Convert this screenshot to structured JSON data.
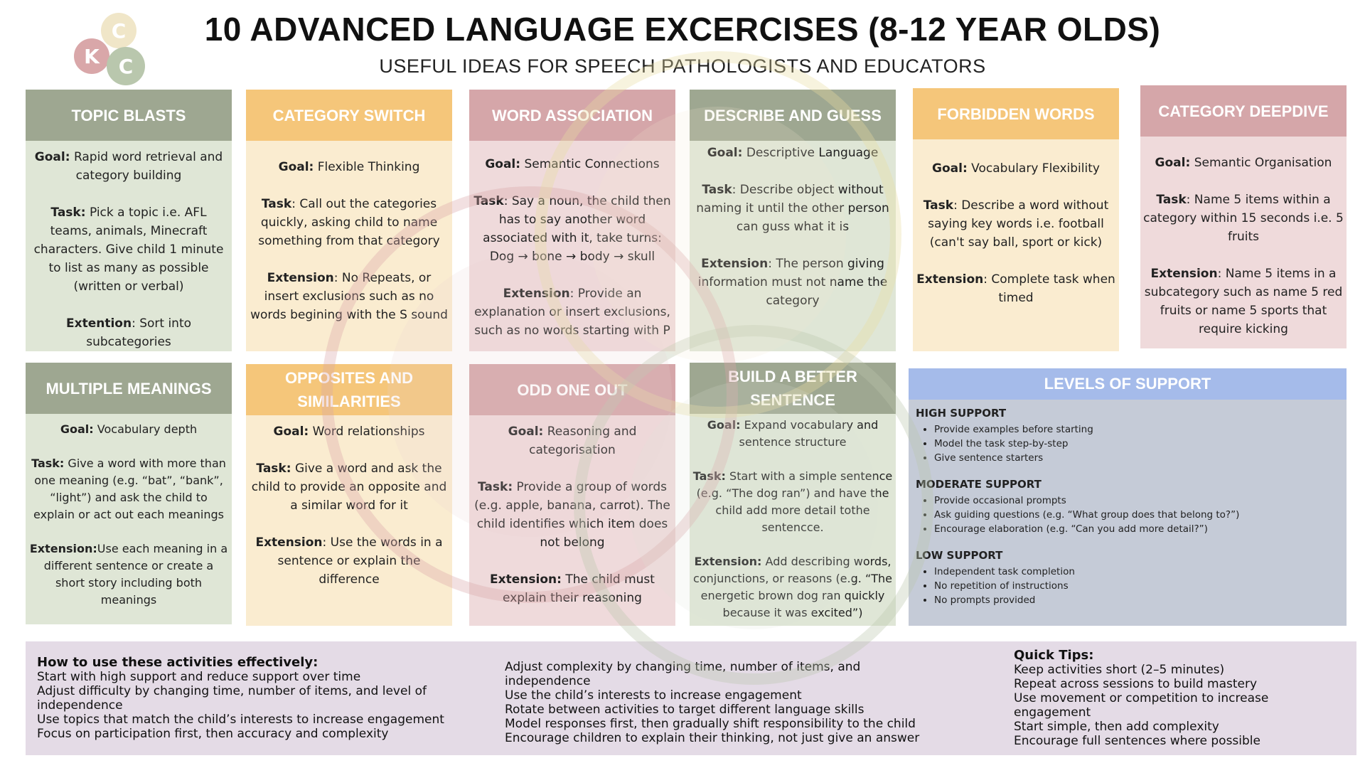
{
  "logo": {
    "letters": [
      "C",
      "K",
      "C"
    ],
    "colors": [
      "#f0e6c8",
      "#d9a7a9",
      "#b9c7ad"
    ]
  },
  "header": {
    "title": "10 ADVANCED LANGUAGE EXCERCISES (8-12 YEAR OLDS)",
    "subtitle": "USEFUL IDEAS FOR SPEECH PATHOLOGISTS AND EDUCATORS"
  },
  "cards": [
    {
      "title": "TOPIC BLASTS",
      "goal_label": "Goal:",
      "goal": "Rapid word retrieval and category building",
      "task_label": "Task:",
      "task": "Pick a topic i.e. AFL teams, animals, Minecraft characters. Give child 1 minute to list as many as possible (written or verbal)",
      "ext_label": "Extention",
      "ext": ": Sort into subcategories"
    },
    {
      "title": "CATEGORY SWITCH",
      "goal_label": "Goal:",
      "goal": "Flexible Thinking",
      "task_label": "Task",
      "task": ": Call out the categories quickly, asking child to name something from that category",
      "ext_label": "Extension",
      "ext": ": No Repeats, or insert exclusions such as no words begining with the S sound"
    },
    {
      "title": "WORD ASSOCIATION",
      "goal_label": "Goal:",
      "goal": "Semantic Connections",
      "task_label": "Task",
      "task": ": Say a noun, the child then has to say another word associated with it, take turns: Dog → bone → body → skull",
      "ext_label": "Extension",
      "ext": ": Provide an explanation or insert exclusions, such as no words starting with P"
    },
    {
      "title": "DESCRIBE AND GUESS",
      "goal_label": "Goal:",
      "goal": "Descriptive Language",
      "task_label": "Task",
      "task": ": Describe object without naming it until the other person can guss what it is",
      "ext_label": "Extension",
      "ext": ": The person giving information  must not name the category"
    },
    {
      "title": "FORBIDDEN WORDS",
      "goal_label": "Goal:",
      "goal": "Vocabulary Flexibility",
      "task_label": "Task",
      "task": ": Describe a word without saying key words i.e. football (can't say ball, sport or kick)",
      "ext_label": "Extension",
      "ext": ": Complete task when timed"
    },
    {
      "title": "CATEGORY DEEPDIVE",
      "goal_label": "Goal:",
      "goal": "Semantic Organisation",
      "task_label": "Task",
      "task": ": Name 5 items within a category within 15 seconds i.e. 5 fruits",
      "ext_label": "Extension",
      "ext": ": Name 5 items in a subcategory such as name 5 red fruits or name 5 sports that require kicking"
    },
    {
      "title": "MULTIPLE MEANINGS",
      "goal_label": "Goal:",
      "goal": " Vocabulary depth",
      "task_label": "Task:",
      "task": "Give a word with more than one meaning (e.g. “bat”, “bank”, “light”) and ask the child to explain or act out each meanings",
      "ext_label": "Extension:",
      "ext": "Use each meaning in a different sentence or create a short story including both meanings"
    },
    {
      "title": "OPPOSITES AND SIMILARITIES",
      "goal_label": "Goal:",
      "goal": "Word relationships",
      "task_label": "Task:",
      "task": "Give a word and ask the child to provide an opposite and a similar word for it",
      "ext_label": "Extension",
      "ext": ": Use the words in a sentence or explain the difference"
    },
    {
      "title": "ODD ONE OUT",
      "goal_label": "Goal:",
      "goal": "Reasoning and categorisation",
      "task_label": "Task:",
      "task": "Provide a group of words (e.g. apple, banana, carrot). The child identifies which item does not belong",
      "ext_label": "Extension:",
      "ext": "The child must explain their reasoning"
    },
    {
      "title": "BUILD A BETTER SENTENCE",
      "goal_label": "Goal:",
      "goal": "Expand vocabulary and sentence structure",
      "task_label": "Task:",
      "task": "Start with a simple sentence (e.g. “The dog ran”) and have the child add more detail tothe sentencce.",
      "ext_label": "Extension:",
      "ext": "Add describing words, conjunctions, or reasons (e.g. “The energetic brown dog ran quickly because it was excited”)"
    }
  ],
  "levels": {
    "title": "LEVELS OF SUPPORT",
    "groups": [
      {
        "heading": "HIGH SUPPORT",
        "items": [
          "Provide examples before starting",
          "Model the task step-by-step",
          "Give sentence starters"
        ]
      },
      {
        "heading": "MODERATE SUPPORT",
        "items": [
          "Provide occasional prompts",
          "Ask guiding questions (e.g. “What group does that belong to?”)",
          "Encourage elaboration (e.g. “Can you add more detail?”)"
        ]
      },
      {
        "heading": "LOW SUPPORT",
        "items": [
          "Independent task completion",
          "No repetition of instructions",
          "No prompts provided"
        ]
      }
    ]
  },
  "bottom": {
    "col1": {
      "heading": "How to use these activities effectively:",
      "lines": [
        "Start with high support and reduce support over time",
        "Adjust difficulty by changing time, number of items, and level of independence",
        "Use topics that match the child’s interests to increase engagement",
        "Focus on participation first, then accuracy and complexity"
      ]
    },
    "col2": {
      "lines": [
        "Adjust complexity by changing time, number of items, and independence",
        "Use the child’s interests to increase engagement",
        "Rotate between activities to target different language skills",
        "Model responses first, then gradually shift responsibility to the child",
        "Encourage children to explain their thinking, not just give an answer"
      ]
    },
    "col3": {
      "heading": "Quick Tips:",
      "lines": [
        "Keep activities short (2–5 minutes)",
        "Repeat across sessions to build mastery",
        "Use movement or competition to increase engagement",
        "Start simple, then add complexity",
        "Encourage full sentences where possible"
      ]
    }
  }
}
